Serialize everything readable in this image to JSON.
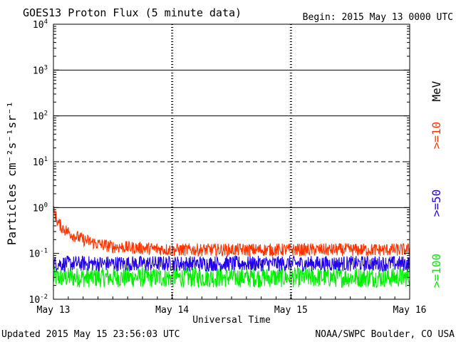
{
  "header": {
    "title": "GOES13 Proton Flux (5 minute data)",
    "begin": "Begin: 2015 May 13 0000 UTC"
  },
  "footer": {
    "updated": "Updated 2015 May 15 23:56:03 UTC",
    "credit": "NOAA/SWPC Boulder, CO USA"
  },
  "colors": {
    "ge10": "#ff3300",
    "ge50": "#2200ee",
    "ge100": "#00ee00",
    "axis": "#000000",
    "background": "#ffffff"
  },
  "chart_data": {
    "type": "line",
    "title": "GOES13 Proton Flux (5 minute data)",
    "xlabel": "Universal Time",
    "ylabel": "Particles cm⁻²s⁻¹sr⁻¹",
    "yscale": "log",
    "ylim": [
      0.01,
      10000
    ],
    "xlim": [
      "2015-05-13",
      "2015-05-16"
    ],
    "x_ticks": [
      "May 13",
      "May 14",
      "May 15",
      "May 16"
    ],
    "y_ticks": [
      {
        "base": "10",
        "exp": "-2"
      },
      {
        "base": "10",
        "exp": "-1"
      },
      {
        "base": "10",
        "exp": "0"
      },
      {
        "base": "10",
        "exp": "1"
      },
      {
        "base": "10",
        "exp": "2"
      },
      {
        "base": "10",
        "exp": "3"
      },
      {
        "base": "10",
        "exp": "4"
      }
    ],
    "y_tick_values": [
      0.01,
      0.1,
      1,
      10,
      100,
      1000,
      10000
    ],
    "reference_lines": [
      {
        "value": 1,
        "style": "solid"
      },
      {
        "value": 10,
        "style": "dashed"
      },
      {
        "value": 100,
        "style": "solid"
      },
      {
        "value": 1000,
        "style": "solid"
      }
    ],
    "day_boundaries": [
      "2015-05-14",
      "2015-05-15"
    ],
    "energy_unit_label": "MeV",
    "grid": false,
    "legend_position": "right",
    "series": [
      {
        "name": ">=10",
        "color": "#ff3300",
        "x": [
          "2015-05-13 00:00",
          "2015-05-13 01:00",
          "2015-05-13 02:00",
          "2015-05-13 04:00",
          "2015-05-13 06:00",
          "2015-05-13 09:00",
          "2015-05-13 12:00",
          "2015-05-13 18:00",
          "2015-05-14 00:00",
          "2015-05-14 12:00",
          "2015-05-15 00:00",
          "2015-05-15 12:00",
          "2015-05-16 00:00"
        ],
        "values": [
          0.85,
          0.45,
          0.35,
          0.25,
          0.2,
          0.16,
          0.14,
          0.13,
          0.12,
          0.12,
          0.12,
          0.12,
          0.12
        ]
      },
      {
        "name": ">=50",
        "color": "#2200ee",
        "x": [
          "2015-05-13 00:00",
          "2015-05-13 12:00",
          "2015-05-14 00:00",
          "2015-05-14 12:00",
          "2015-05-15 00:00",
          "2015-05-15 12:00",
          "2015-05-16 00:00"
        ],
        "values": [
          0.06,
          0.06,
          0.06,
          0.06,
          0.06,
          0.06,
          0.06
        ]
      },
      {
        "name": ">=100",
        "color": "#00ee00",
        "x": [
          "2015-05-13 00:00",
          "2015-05-13 12:00",
          "2015-05-14 00:00",
          "2015-05-14 12:00",
          "2015-05-15 00:00",
          "2015-05-15 12:00",
          "2015-05-16 00:00"
        ],
        "values": [
          0.03,
          0.03,
          0.03,
          0.03,
          0.03,
          0.03,
          0.03
        ]
      }
    ]
  }
}
